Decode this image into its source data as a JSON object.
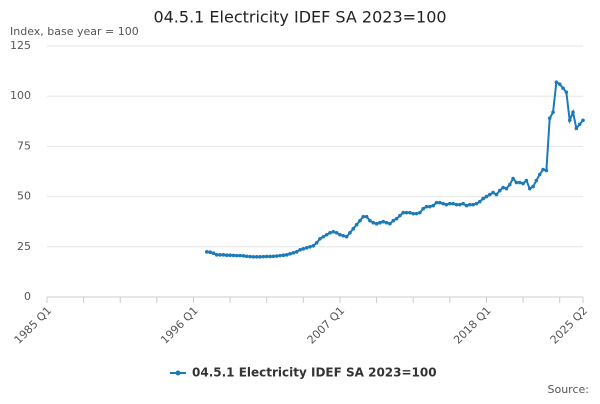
{
  "chart_data": {
    "type": "line",
    "title": "04.5.1 Electricity IDEF SA 2023=100",
    "subtitle": "Index, base year = 100",
    "source": "Source:",
    "categories": [
      "1985 Q1",
      null,
      null,
      null,
      null,
      null,
      null,
      null,
      null,
      null,
      null,
      null,
      null,
      null,
      null,
      null,
      null,
      null,
      null,
      null,
      null,
      null,
      null,
      null,
      null,
      null,
      null,
      null,
      null,
      null,
      null,
      null,
      null,
      null,
      null,
      null,
      null,
      null,
      null,
      null,
      null,
      null,
      null,
      null,
      "1996 Q1",
      null,
      null,
      null,
      null,
      null,
      null,
      null,
      null,
      null,
      null,
      null,
      null,
      null,
      null,
      null,
      null,
      null,
      null,
      null,
      null,
      null,
      null,
      null,
      null,
      null,
      null,
      null,
      null,
      null,
      null,
      null,
      null,
      null,
      null,
      null,
      null,
      null,
      null,
      null,
      null,
      null,
      null,
      null,
      "2007 Q1",
      null,
      null,
      null,
      null,
      null,
      null,
      null,
      null,
      null,
      null,
      null,
      null,
      null,
      null,
      null,
      null,
      null,
      null,
      null,
      null,
      null,
      null,
      null,
      null,
      null,
      null,
      null,
      null,
      null,
      null,
      null,
      null,
      null,
      null,
      null,
      null,
      null,
      null,
      null,
      null,
      null,
      null,
      null,
      "2018 Q1",
      null,
      null,
      null,
      null,
      null,
      null,
      null,
      null,
      null,
      null,
      null,
      null,
      null,
      null,
      null,
      null,
      null,
      null,
      null,
      null,
      null,
      null,
      null,
      null,
      null,
      null,
      null,
      null,
      "2025 Q2"
    ],
    "series": [
      {
        "name": "04.5.1 Electricity IDEF SA 2023=100",
        "color": "#1b7ab8",
        "values": [
          null,
          null,
          null,
          null,
          null,
          null,
          null,
          null,
          null,
          null,
          null,
          null,
          null,
          null,
          null,
          null,
          null,
          null,
          null,
          null,
          null,
          null,
          null,
          null,
          null,
          null,
          null,
          null,
          null,
          null,
          null,
          null,
          null,
          null,
          null,
          null,
          null,
          null,
          null,
          null,
          null,
          null,
          null,
          null,
          null,
          null,
          null,
          null,
          22.5,
          22.3,
          21.8,
          21.0,
          21.0,
          21.0,
          20.8,
          20.8,
          20.7,
          20.6,
          20.6,
          20.5,
          20.3,
          20.1,
          20.0,
          20.0,
          20.0,
          20.1,
          20.2,
          20.2,
          20.3,
          20.4,
          20.6,
          20.8,
          21.0,
          21.5,
          22.0,
          22.5,
          23.5,
          24.0,
          24.5,
          25.0,
          25.5,
          27.0,
          29.0,
          30.0,
          31.0,
          32.0,
          32.5,
          32.0,
          31.0,
          30.5,
          30.0,
          32.0,
          34.0,
          36.0,
          38.0,
          40.0,
          40.0,
          38.0,
          37.0,
          36.5,
          37.0,
          37.5,
          37.0,
          36.5,
          38.0,
          39.0,
          40.5,
          42.0,
          42.0,
          42.0,
          41.5,
          41.5,
          42.0,
          44.0,
          45.0,
          45.0,
          45.5,
          47.0,
          47.0,
          46.5,
          46.0,
          46.5,
          46.5,
          46.0,
          46.0,
          46.5,
          45.5,
          46.0,
          46.0,
          46.5,
          47.5,
          49.0,
          50.0,
          51.0,
          52.0,
          51.0,
          53.0,
          54.5,
          54.0,
          56.0,
          59.0,
          57.0,
          57.0,
          56.5,
          58.0,
          54.0,
          55.0,
          58.0,
          61.0,
          63.5,
          63.0,
          89.0,
          92.0,
          107.0,
          106.0,
          104.0,
          102.0,
          88.0,
          92.0,
          84.0,
          86.0,
          88.0
        ]
      }
    ],
    "ylim": [
      0,
      125
    ],
    "yticks": [
      0,
      25,
      50,
      75,
      100,
      125
    ],
    "grid": true,
    "legend": "bottom"
  }
}
